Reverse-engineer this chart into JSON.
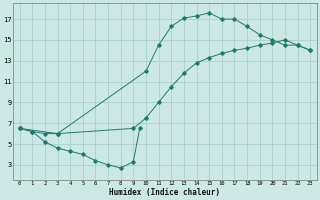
{
  "xlabel": "Humidex (Indice chaleur)",
  "color": "#1e7b6e",
  "bg_color": "#cce8e4",
  "grid_color": "#aacfcb",
  "xlim": [
    -0.5,
    23.5
  ],
  "ylim": [
    1.5,
    18.5
  ],
  "yticks": [
    3,
    5,
    7,
    9,
    11,
    13,
    15,
    17
  ],
  "xticks": [
    0,
    1,
    2,
    3,
    4,
    5,
    6,
    7,
    8,
    9,
    10,
    11,
    12,
    13,
    14,
    15,
    16,
    17,
    18,
    19,
    20,
    21,
    22,
    23
  ],
  "curve1_x": [
    0,
    1,
    2,
    3,
    10,
    11,
    12,
    13,
    14,
    15,
    16,
    17,
    18,
    19,
    20,
    21,
    22,
    23
  ],
  "curve1_y": [
    6.5,
    6.2,
    6.0,
    6.0,
    12.0,
    14.5,
    16.3,
    17.1,
    17.3,
    17.6,
    17.0,
    17.0,
    16.3,
    15.5,
    15.0,
    14.5,
    14.5,
    14.0
  ],
  "curve2_x": [
    0,
    3,
    9,
    10,
    11,
    12,
    13,
    14,
    15,
    16,
    17,
    18,
    19,
    20,
    21,
    22,
    23
  ],
  "curve2_y": [
    6.5,
    6.0,
    6.5,
    7.5,
    9.0,
    10.5,
    11.8,
    12.8,
    13.3,
    13.7,
    14.0,
    14.2,
    14.5,
    14.7,
    15.0,
    14.5,
    14.0
  ],
  "curve3_x": [
    0,
    1,
    2,
    3,
    4,
    5,
    6,
    7,
    8,
    9,
    9.5
  ],
  "curve3_y": [
    6.5,
    6.2,
    5.2,
    4.6,
    4.3,
    4.0,
    3.4,
    3.0,
    2.7,
    3.3,
    6.5
  ]
}
